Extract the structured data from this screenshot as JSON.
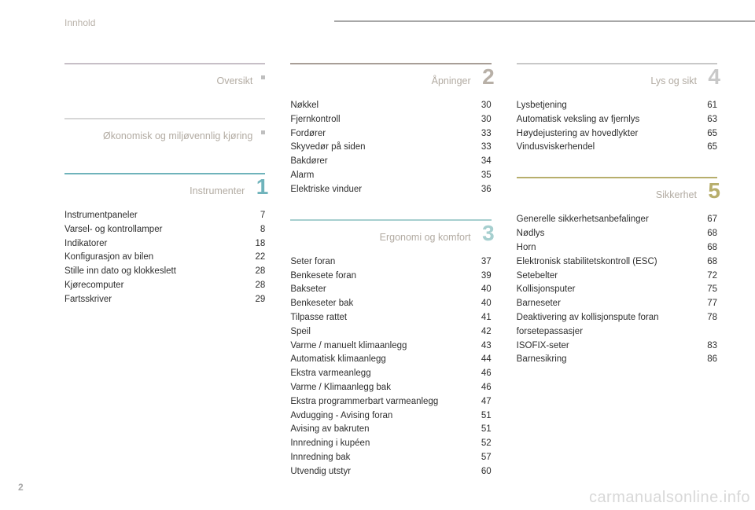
{
  "header": {
    "title": "Innhold"
  },
  "page_number": "2",
  "watermark": "carmanualsonline.info",
  "colors": {
    "top_line": "#a7a7a7",
    "header_text": "#b9b2a9",
    "entry_text": "#2e2e2e",
    "section_title": "#b2aba2",
    "watermark": "#d8d8d8",
    "page_number": "#a7a7a7"
  },
  "columns": [
    {
      "sections": [
        {
          "title": "Oversikt",
          "number": null,
          "dot": true,
          "rule_color": "#c7bfc7",
          "num_color": null,
          "entries": []
        },
        {
          "title": "Økonomisk og miljøvennlig kjøring",
          "number": null,
          "dot": true,
          "rule_color": "#d7d7d7",
          "num_color": null,
          "entries": []
        },
        {
          "title": "Instrumenter",
          "number": "1",
          "dot": false,
          "rule_color": "#6fb3bb",
          "num_color": "#6fb3bb",
          "entries": [
            {
              "label": "Instrumentpaneler",
              "page": "7"
            },
            {
              "label": "Varsel- og kontrollamper",
              "page": "8"
            },
            {
              "label": "Indikatorer",
              "page": "18"
            },
            {
              "label": "Konfigurasjon av bilen",
              "page": "22"
            },
            {
              "label": "Stille inn dato og klokkeslett",
              "page": "28"
            },
            {
              "label": "Kjørecomputer",
              "page": "28"
            },
            {
              "label": "Fartsskriver",
              "page": "29"
            }
          ]
        }
      ]
    },
    {
      "sections": [
        {
          "title": "Åpninger",
          "number": "2",
          "dot": false,
          "rule_color": "#a89e97",
          "num_color": "#b8b0a7",
          "entries": [
            {
              "label": "Nøkkel",
              "page": "30"
            },
            {
              "label": "Fjernkontroll",
              "page": "30"
            },
            {
              "label": "Fordører",
              "page": "33"
            },
            {
              "label": "Skyvedør på siden",
              "page": "33"
            },
            {
              "label": "Bakdører",
              "page": "34"
            },
            {
              "label": "Alarm",
              "page": "35"
            },
            {
              "label": "Elektriske vinduer",
              "page": "36"
            }
          ]
        },
        {
          "title": "Ergonomi og komfort",
          "number": "3",
          "dot": false,
          "rule_color": "#a6cfcf",
          "num_color": "#a6cfcf",
          "entries": [
            {
              "label": "Seter foran",
              "page": "37"
            },
            {
              "label": "Benkesete foran",
              "page": "39"
            },
            {
              "label": "Bakseter",
              "page": "40"
            },
            {
              "label": "Benkeseter bak",
              "page": "40"
            },
            {
              "label": "Tilpasse rattet",
              "page": "41"
            },
            {
              "label": "Speil",
              "page": "42"
            },
            {
              "label": "Varme / manuelt klimaanlegg",
              "page": "43"
            },
            {
              "label": "Automatisk klimaanlegg",
              "page": "44"
            },
            {
              "label": "Ekstra varmeanlegg",
              "page": "46"
            },
            {
              "label": "Varme / Klimaanlegg bak",
              "page": "46"
            },
            {
              "label": "Ekstra programmerbart varmeanlegg",
              "page": "47"
            },
            {
              "label": "Avdugging - Avising foran",
              "page": "51"
            },
            {
              "label": "Avising av bakruten",
              "page": "51"
            },
            {
              "label": "Innredning i kupéen",
              "page": "52"
            },
            {
              "label": "Innredning bak",
              "page": "57"
            },
            {
              "label": "Utvendig utstyr",
              "page": "60"
            }
          ]
        }
      ]
    },
    {
      "sections": [
        {
          "title": "Lys og sikt",
          "number": "4",
          "dot": false,
          "rule_color": "#c8c8c8",
          "num_color": "#c8c8c8",
          "entries": [
            {
              "label": "Lysbetjening",
              "page": "61"
            },
            {
              "label": "Automatisk veksling av fjernlys",
              "page": "63"
            },
            {
              "label": "Høydejustering av hovedlykter",
              "page": "65"
            },
            {
              "label": "Vindusviskerhendel",
              "page": "65"
            }
          ]
        },
        {
          "title": "Sikkerhet",
          "number": "5",
          "dot": false,
          "rule_color": "#b7ae6c",
          "num_color": "#b7ae6c",
          "entries": [
            {
              "label": "Generelle sikkerhetsanbefalinger",
              "page": "67"
            },
            {
              "label": "Nødlys",
              "page": "68"
            },
            {
              "label": "Horn",
              "page": "68"
            },
            {
              "label": "Elektronisk stabilitetskontroll (ESC)",
              "page": "68"
            },
            {
              "label": "Setebelter",
              "page": "72"
            },
            {
              "label": "Kollisjonsputer",
              "page": "75"
            },
            {
              "label": "Barneseter",
              "page": "77"
            },
            {
              "label": "Deaktivering av kollisjonspute foran forsetepassasjer",
              "page": "78"
            },
            {
              "label": "ISOFIX-seter",
              "page": "83"
            },
            {
              "label": "Barnesikring",
              "page": "86"
            }
          ]
        }
      ]
    }
  ]
}
